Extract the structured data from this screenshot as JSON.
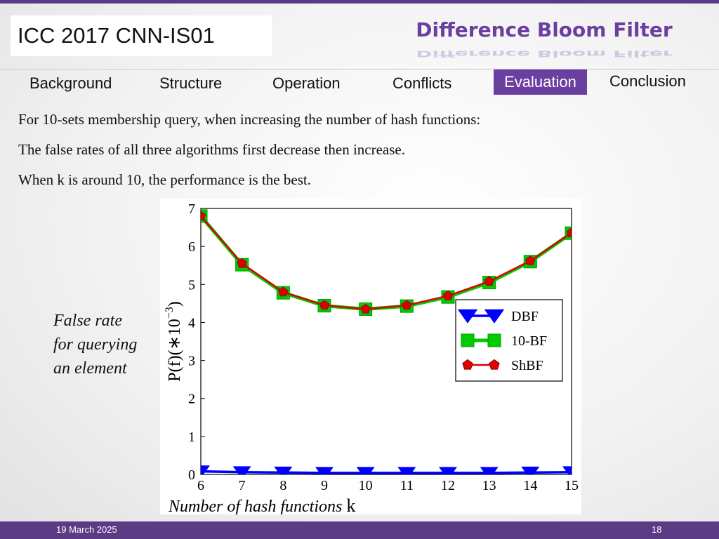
{
  "header": {
    "conference": "ICC 2017  CNN-IS01",
    "title": "Difference Bloom Filter"
  },
  "nav": {
    "items": [
      "Background",
      "Structure",
      "Operation",
      "Conflicts",
      "Evaluation",
      "Conclusion"
    ],
    "active": "Evaluation"
  },
  "body": {
    "lines": [
      "For 10-sets membership query, when increasing the number of hash functions:",
      "The false rates of all three algorithms first decrease then increase.",
      "When k is around 10, the performance is the best."
    ],
    "side_label": [
      "False rate",
      "for querying",
      "an element"
    ]
  },
  "chart_data": {
    "type": "line",
    "x": [
      6,
      7,
      8,
      9,
      10,
      11,
      12,
      13,
      14,
      15
    ],
    "xlim": [
      6,
      15
    ],
    "ylim": [
      0,
      7
    ],
    "xticks": [
      "6",
      "7",
      "8",
      "9",
      "10",
      "11",
      "12",
      "13",
      "14",
      "15"
    ],
    "yticks": [
      "0",
      "1",
      "2",
      "3",
      "4",
      "5",
      "6",
      "7"
    ],
    "xlabel_italic": "Number of hash functions",
    "xlabel_var": "k",
    "ylabel": "P(f)(∗10",
    "ylabel_sup": "−3",
    "ylabel_close": ")",
    "legend_position": "right",
    "series": [
      {
        "name": "DBF",
        "color": "#0000ff",
        "marker": "triangle-down",
        "values": [
          0.08,
          0.06,
          0.05,
          0.04,
          0.04,
          0.04,
          0.04,
          0.04,
          0.05,
          0.06
        ]
      },
      {
        "name": "10-BF",
        "color": "#00cc00",
        "marker": "square",
        "values": [
          6.8,
          5.52,
          4.78,
          4.44,
          4.35,
          4.43,
          4.67,
          5.05,
          5.6,
          6.35
        ]
      },
      {
        "name": "ShBF",
        "color": "#dd0000",
        "marker": "pentagon",
        "values": [
          6.8,
          5.55,
          4.8,
          4.45,
          4.35,
          4.45,
          4.7,
          5.08,
          5.62,
          6.36
        ]
      }
    ]
  },
  "footer": {
    "date": "19 March 2025",
    "page": "18"
  }
}
